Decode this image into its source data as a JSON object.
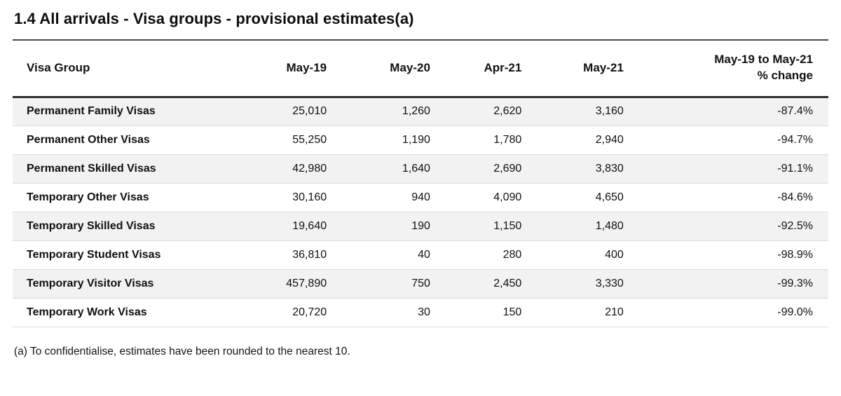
{
  "title": "1.4 All arrivals - Visa groups - provisional estimates(a)",
  "footnote": "(a) To confidentialise, estimates have been rounded to the nearest 10.",
  "table": {
    "columns": [
      "Visa Group",
      "May-19",
      "May-20",
      "Apr-21",
      "May-21",
      "May-19 to May-21\n% change"
    ],
    "rows": [
      [
        "Permanent Family Visas",
        "25,010",
        "1,260",
        "2,620",
        "3,160",
        "-87.4%"
      ],
      [
        "Permanent Other Visas",
        "55,250",
        "1,190",
        "1,780",
        "2,940",
        "-94.7%"
      ],
      [
        "Permanent Skilled Visas",
        "42,980",
        "1,640",
        "2,690",
        "3,830",
        "-91.1%"
      ],
      [
        "Temporary Other Visas",
        "30,160",
        "940",
        "4,090",
        "4,650",
        "-84.6%"
      ],
      [
        "Temporary Skilled Visas",
        "19,640",
        "190",
        "1,150",
        "1,480",
        "-92.5%"
      ],
      [
        "Temporary Student Visas",
        "36,810",
        "40",
        "280",
        "400",
        "-98.9%"
      ],
      [
        "Temporary Visitor Visas",
        "457,890",
        "750",
        "2,450",
        "3,330",
        "-99.3%"
      ],
      [
        "Temporary Work Visas",
        "20,720",
        "30",
        "150",
        "210",
        "-99.0%"
      ]
    ]
  },
  "colors": {
    "text": "#111111",
    "zebra_stripe": "#f2f2f2",
    "header_border": "#2e2e2e",
    "row_border": "#dcdcdc",
    "title_rule": "#4a4a4a"
  },
  "chart_data": {
    "type": "table",
    "title": "1.4 All arrivals - Visa groups - provisional estimates(a)",
    "columns": [
      "Visa Group",
      "May-19",
      "May-20",
      "Apr-21",
      "May-21",
      "May-19 to May-21 % change"
    ],
    "rows": [
      {
        "visa_group": "Permanent Family Visas",
        "may_19": 25010,
        "may_20": 1260,
        "apr_21": 2620,
        "may_21": 3160,
        "pct_change_may19_to_may21": -87.4
      },
      {
        "visa_group": "Permanent Other Visas",
        "may_19": 55250,
        "may_20": 1190,
        "apr_21": 1780,
        "may_21": 2940,
        "pct_change_may19_to_may21": -94.7
      },
      {
        "visa_group": "Permanent Skilled Visas",
        "may_19": 42980,
        "may_20": 1640,
        "apr_21": 2690,
        "may_21": 3830,
        "pct_change_may19_to_may21": -91.1
      },
      {
        "visa_group": "Temporary Other Visas",
        "may_19": 30160,
        "may_20": 940,
        "apr_21": 4090,
        "may_21": 4650,
        "pct_change_may19_to_may21": -84.6
      },
      {
        "visa_group": "Temporary Skilled Visas",
        "may_19": 19640,
        "may_20": 190,
        "apr_21": 1150,
        "may_21": 1480,
        "pct_change_may19_to_may21": -92.5
      },
      {
        "visa_group": "Temporary Student Visas",
        "may_19": 36810,
        "may_20": 40,
        "apr_21": 280,
        "may_21": 400,
        "pct_change_may19_to_may21": -98.9
      },
      {
        "visa_group": "Temporary Visitor Visas",
        "may_19": 457890,
        "may_20": 750,
        "apr_21": 2450,
        "may_21": 3330,
        "pct_change_may19_to_may21": -99.3
      },
      {
        "visa_group": "Temporary Work Visas",
        "may_19": 20720,
        "may_20": 30,
        "apr_21": 150,
        "may_21": 210,
        "pct_change_may19_to_may21": -99.0
      }
    ],
    "footnote": "(a) To confidentialise, estimates have been rounded to the nearest 10.",
    "layout": {
      "zebra_striping": true,
      "first_column_align": "left",
      "numeric_columns_align": "right"
    }
  }
}
